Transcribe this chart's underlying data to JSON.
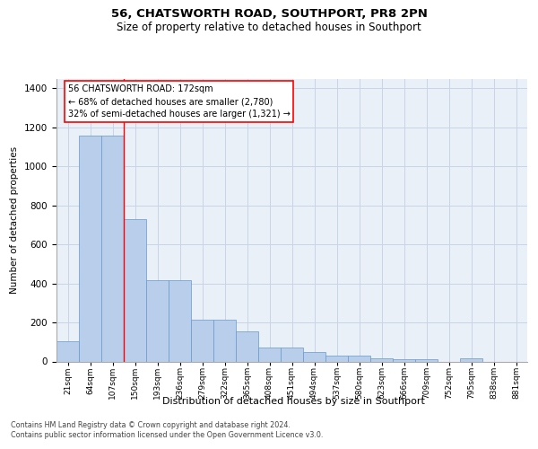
{
  "title1": "56, CHATSWORTH ROAD, SOUTHPORT, PR8 2PN",
  "title2": "Size of property relative to detached houses in Southport",
  "xlabel": "Distribution of detached houses by size in Southport",
  "ylabel": "Number of detached properties",
  "categories": [
    "21sqm",
    "64sqm",
    "107sqm",
    "150sqm",
    "193sqm",
    "236sqm",
    "279sqm",
    "322sqm",
    "365sqm",
    "408sqm",
    "451sqm",
    "494sqm",
    "537sqm",
    "580sqm",
    "623sqm",
    "666sqm",
    "709sqm",
    "752sqm",
    "795sqm",
    "838sqm",
    "881sqm"
  ],
  "values": [
    105,
    1160,
    1160,
    730,
    415,
    415,
    215,
    215,
    155,
    70,
    70,
    48,
    30,
    28,
    18,
    13,
    13,
    0,
    15,
    0,
    0
  ],
  "bar_color": "#b8ceea",
  "bar_edge_color": "#6699cc",
  "grid_color": "#c8d4e8",
  "background_color": "#eaf0f8",
  "red_line_x": 2.5,
  "annotation_line1": "56 CHATSWORTH ROAD: 172sqm",
  "annotation_line2": "← 68% of detached houses are smaller (2,780)",
  "annotation_line3": "32% of semi-detached houses are larger (1,321) →",
  "footnote1": "Contains HM Land Registry data © Crown copyright and database right 2024.",
  "footnote2": "Contains public sector information licensed under the Open Government Licence v3.0.",
  "yticks": [
    0,
    200,
    400,
    600,
    800,
    1000,
    1200,
    1400
  ],
  "ylim": [
    0,
    1450
  ]
}
